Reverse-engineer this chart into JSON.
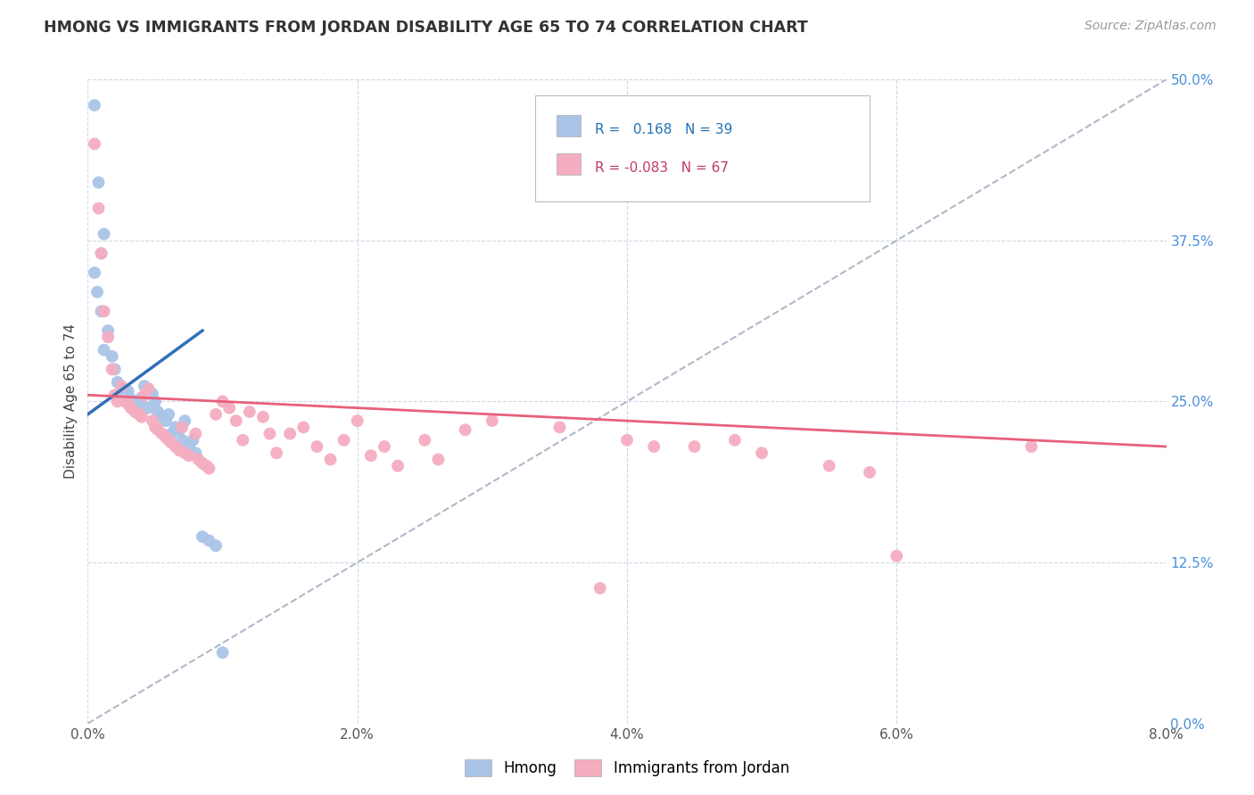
{
  "title": "HMONG VS IMMIGRANTS FROM JORDAN DISABILITY AGE 65 TO 74 CORRELATION CHART",
  "source": "Source: ZipAtlas.com",
  "ylabel": "Disability Age 65 to 74",
  "xlim": [
    0.0,
    8.0
  ],
  "ylim": [
    0.0,
    50.0
  ],
  "yticks": [
    0.0,
    12.5,
    25.0,
    37.5,
    50.0
  ],
  "xticks": [
    0.0,
    2.0,
    4.0,
    6.0,
    8.0
  ],
  "hmong_color": "#aac4e8",
  "jordan_color": "#f5adc0",
  "hmong_line_color": "#3070b8",
  "jordan_line_color": "#e8607a",
  "dashed_line_color": "#b0b8c8",
  "R_hmong": 0.168,
  "N_hmong": 39,
  "R_jordan": -0.083,
  "N_jordan": 67,
  "legend_label_hmong": "Hmong",
  "legend_label_jordan": "Immigrants from Jordan",
  "background_color": "#ffffff",
  "grid_color": "#d0d8e8",
  "hmong_x": [
    0.05,
    0.08,
    0.1,
    0.05,
    0.07,
    0.1,
    0.12,
    0.15,
    0.12,
    0.18,
    0.2,
    0.22,
    0.25,
    0.28,
    0.3,
    0.32,
    0.35,
    0.38,
    0.4,
    0.42,
    0.45,
    0.48,
    0.5,
    0.52,
    0.55,
    0.58,
    0.6,
    0.62,
    0.65,
    0.68,
    0.7,
    0.72,
    0.75,
    0.78,
    0.8,
    0.85,
    0.9,
    0.95,
    1.0
  ],
  "hmong_y": [
    48.0,
    42.0,
    36.5,
    35.0,
    33.5,
    32.0,
    38.0,
    30.5,
    29.0,
    28.5,
    27.5,
    26.5,
    26.0,
    25.5,
    25.8,
    25.2,
    25.0,
    24.8,
    25.3,
    26.2,
    24.5,
    25.6,
    25.0,
    24.2,
    23.8,
    23.5,
    24.0,
    22.5,
    23.0,
    22.8,
    22.0,
    23.5,
    21.5,
    22.0,
    21.0,
    14.5,
    14.2,
    13.8,
    5.5
  ],
  "jordan_x": [
    0.05,
    0.08,
    0.1,
    0.12,
    0.15,
    0.18,
    0.2,
    0.22,
    0.25,
    0.28,
    0.3,
    0.32,
    0.35,
    0.38,
    0.4,
    0.42,
    0.45,
    0.48,
    0.5,
    0.52,
    0.55,
    0.58,
    0.6,
    0.62,
    0.65,
    0.68,
    0.7,
    0.72,
    0.75,
    0.8,
    0.82,
    0.85,
    0.88,
    0.9,
    0.95,
    1.0,
    1.05,
    1.1,
    1.15,
    1.2,
    1.3,
    1.35,
    1.4,
    1.5,
    1.6,
    1.7,
    1.8,
    1.9,
    2.0,
    2.1,
    2.2,
    2.3,
    2.5,
    2.6,
    2.8,
    3.0,
    3.5,
    3.8,
    4.0,
    4.2,
    4.5,
    4.8,
    5.0,
    5.5,
    5.8,
    6.0,
    7.0
  ],
  "jordan_y": [
    45.0,
    40.0,
    36.5,
    32.0,
    30.0,
    27.5,
    25.5,
    25.0,
    26.2,
    25.0,
    24.8,
    24.5,
    24.2,
    24.0,
    23.8,
    25.5,
    26.0,
    23.5,
    23.0,
    22.8,
    22.5,
    22.2,
    22.0,
    21.8,
    21.5,
    21.2,
    23.0,
    21.0,
    20.8,
    22.5,
    20.5,
    20.2,
    20.0,
    19.8,
    24.0,
    25.0,
    24.5,
    23.5,
    22.0,
    24.2,
    23.8,
    22.5,
    21.0,
    22.5,
    23.0,
    21.5,
    20.5,
    22.0,
    23.5,
    20.8,
    21.5,
    20.0,
    22.0,
    20.5,
    22.8,
    23.5,
    23.0,
    10.5,
    22.0,
    21.5,
    21.5,
    22.0,
    21.0,
    20.0,
    19.5,
    13.0,
    21.5
  ]
}
